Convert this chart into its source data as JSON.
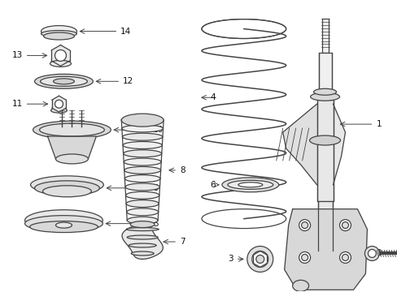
{
  "bg_color": "#ffffff",
  "line_color": "#444444",
  "text_color": "#111111",
  "fig_width": 4.89,
  "fig_height": 3.6,
  "dpi": 100
}
